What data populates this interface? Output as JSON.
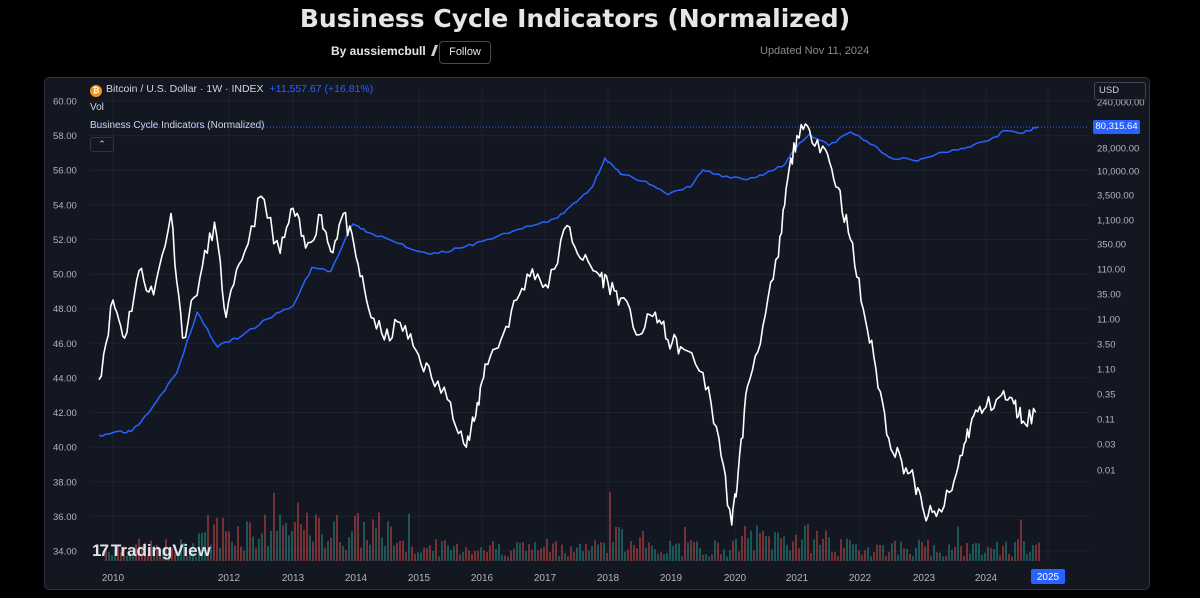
{
  "header": {
    "title": "Business Cycle Indicators (Normalized)",
    "author": "By aussiemcbull",
    "follow_label": "Follow",
    "updated": "Updated Nov 11, 2024"
  },
  "legend": {
    "symbol": "Bitcoin / U.S. Dollar · 1W · INDEX",
    "change": "+11,557.67 (+16.81%)",
    "icon": "bitcoin-icon",
    "vol": "Vol",
    "indicator": "Business Cycle Indicators (Normalized)",
    "collapse": "⌃"
  },
  "price_scale": {
    "currency": "USD",
    "current_price": "80,315.64"
  },
  "branding": {
    "logo_text": "TradingView",
    "logo_mark": "17"
  },
  "colors": {
    "indicator": "#ffffff",
    "price": "#2962ff",
    "vol_up": "#26a69a",
    "vol_down": "#ef5350",
    "background": "#131722"
  },
  "chart_data": {
    "type": "line",
    "title": "Business Cycle Indicators (Normalized)",
    "xlabel": "",
    "ylabel": "",
    "grid": true,
    "x_ticks": [
      "2010",
      "2012",
      "2013",
      "2014",
      "2015",
      "2016",
      "2017",
      "2018",
      "2019",
      "2020",
      "2021",
      "2022",
      "2023",
      "2024",
      "2025"
    ],
    "x_highlight": "2025",
    "y_left": {
      "ticks": [
        "60.00",
        "58.00",
        "56.00",
        "54.00",
        "52.00",
        "50.00",
        "48.00",
        "46.00",
        "44.00",
        "42.00",
        "40.00",
        "38.00",
        "36.00",
        "34.00"
      ],
      "range": [
        33.5,
        60.3
      ]
    },
    "y_right": {
      "scale": "log",
      "ticks": [
        "240,000.00",
        "28,000.00",
        "10,000.00",
        "3,500.00",
        "1,100.00",
        "350.00",
        "110.00",
        "35.00",
        "11.00",
        "3.50",
        "1.10",
        "0.35",
        "0.11",
        "0.03",
        "0.01"
      ]
    },
    "series": [
      {
        "name": "Business Cycle Indicators (Normalized)",
        "axis": "left",
        "x": [
          2009.75,
          2010.0,
          2010.2,
          2010.45,
          2010.7,
          2011.0,
          2011.2,
          2011.5,
          2011.75,
          2011.95,
          2012.2,
          2012.5,
          2012.8,
          2013.0,
          2013.2,
          2013.45,
          2013.6,
          2013.8,
          2014.0,
          2014.2,
          2014.45,
          2014.7,
          2014.95,
          2015.2,
          2015.5,
          2015.75,
          2015.9,
          2016.05,
          2016.3,
          2016.55,
          2016.8,
          2017.05,
          2017.35,
          2017.6,
          2017.85,
          2018.0,
          2018.2,
          2018.5,
          2018.75,
          2018.95,
          2019.15,
          2019.5,
          2019.75,
          2019.95,
          2020.05,
          2020.2,
          2020.45,
          2020.7,
          2020.85,
          2021.0,
          2021.2,
          2021.45,
          2021.65,
          2021.85,
          2022.05,
          2022.25,
          2022.45,
          2022.65,
          2022.85,
          2023.0,
          2023.2,
          2023.45,
          2023.65,
          2023.8,
          2024.0,
          2024.25,
          2024.45,
          2024.6,
          2024.8
        ],
        "y": [
          43.9,
          48.5,
          46.3,
          50.2,
          48.8,
          53.5,
          46.3,
          49.8,
          53.0,
          47.5,
          50.8,
          54.5,
          51.2,
          53.8,
          51.5,
          53.4,
          51.3,
          53.5,
          51.0,
          48.0,
          46.2,
          47.2,
          45.6,
          44.0,
          42.6,
          40.0,
          41.8,
          44.8,
          46.2,
          48.5,
          50.3,
          49.2,
          52.8,
          50.8,
          50.0,
          49.5,
          48.6,
          46.5,
          47.8,
          46.2,
          45.8,
          44.3,
          40.5,
          35.5,
          38.5,
          43.5,
          47.0,
          51.0,
          55.5,
          58.0,
          58.3,
          57.2,
          55.0,
          52.0,
          48.0,
          44.5,
          40.5,
          39.2,
          38.0,
          36.2,
          36.0,
          37.5,
          40.2,
          41.8,
          42.3,
          43.0,
          42.5,
          41.5,
          42.0
        ]
      },
      {
        "name": "Bitcoin / U.S. Dollar",
        "axis": "right",
        "x": [
          2009.75,
          2010.1,
          2010.3,
          2010.5,
          2010.8,
          2011.1,
          2011.45,
          2011.8,
          2012.2,
          2012.6,
          2013.0,
          2013.3,
          2013.6,
          2013.95,
          2014.2,
          2014.6,
          2015.0,
          2015.3,
          2015.7,
          2016.0,
          2016.5,
          2016.9,
          2017.2,
          2017.5,
          2017.75,
          2017.95,
          2018.2,
          2018.6,
          2018.95,
          2019.3,
          2019.5,
          2019.8,
          2020.2,
          2020.5,
          2020.8,
          2020.95,
          2021.2,
          2021.5,
          2021.85,
          2022.1,
          2022.45,
          2022.9,
          2023.2,
          2023.5,
          2023.8,
          2024.1,
          2024.3,
          2024.6,
          2024.85
        ],
        "y": [
          0.05,
          0.06,
          0.06,
          0.1,
          0.3,
          0.9,
          15,
          3,
          5,
          11,
          20,
          120,
          100,
          900,
          600,
          400,
          250,
          230,
          300,
          400,
          650,
          900,
          1200,
          2500,
          5000,
          19000,
          9000,
          6500,
          3500,
          5000,
          11000,
          8000,
          7000,
          9500,
          14000,
          29000,
          58000,
          34000,
          64000,
          42000,
          20000,
          16500,
          23000,
          28000,
          35000,
          48000,
          68000,
          60000,
          80315.64
        ]
      }
    ],
    "volume": {
      "name": "Vol",
      "note": "weekly volume histogram, green up / red down"
    }
  }
}
